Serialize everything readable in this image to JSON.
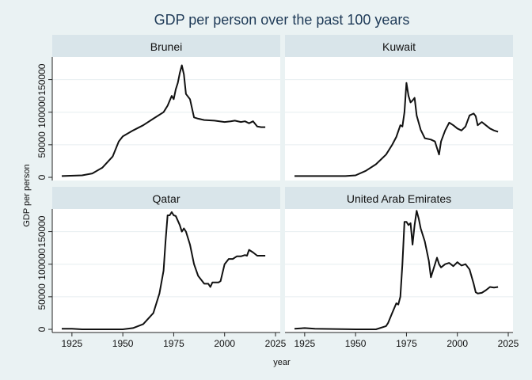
{
  "chart_data": {
    "type": "line",
    "title": "GDP per person over the past 100 years",
    "xlabel": "year",
    "ylabel": "GDP per person",
    "xlim": [
      1920,
      2025
    ],
    "ylim": [
      0,
      175000
    ],
    "x_ticks": [
      1925,
      1950,
      1975,
      2000,
      2025
    ],
    "y_ticks": [
      0,
      50000,
      100000,
      150000
    ],
    "y_tick_labels": [
      "0",
      "50000",
      "100000",
      "150000"
    ],
    "grid": true,
    "legend": "none",
    "panels": [
      {
        "name": "Brunei",
        "x": [
          1920,
          1930,
          1935,
          1940,
          1945,
          1948,
          1950,
          1955,
          1960,
          1965,
          1970,
          1972,
          1974,
          1975,
          1976,
          1977,
          1978,
          1979,
          1980,
          1981,
          1983,
          1985,
          1987,
          1990,
          1995,
          2000,
          2003,
          2005,
          2008,
          2010,
          2012,
          2014,
          2016,
          2018,
          2020
        ],
        "y": [
          2000,
          3000,
          6000,
          15000,
          32000,
          55000,
          63000,
          72000,
          80000,
          90000,
          100000,
          110000,
          125000,
          120000,
          135000,
          145000,
          160000,
          172000,
          158000,
          128000,
          120000,
          92000,
          90000,
          88000,
          87000,
          85000,
          86000,
          87000,
          85000,
          86000,
          83000,
          86000,
          78000,
          77000,
          77000
        ]
      },
      {
        "name": "Kuwait",
        "x": [
          1920,
          1930,
          1945,
          1950,
          1955,
          1960,
          1965,
          1968,
          1970,
          1972,
          1973,
          1974,
          1975,
          1976,
          1977,
          1978,
          1979,
          1980,
          1982,
          1984,
          1987,
          1989,
          1990,
          1991,
          1992,
          1994,
          1996,
          1998,
          2000,
          2002,
          2004,
          2006,
          2008,
          2009,
          2010,
          2012,
          2014,
          2016,
          2018,
          2020
        ],
        "y": [
          2000,
          2000,
          2000,
          3000,
          10000,
          20000,
          35000,
          50000,
          62000,
          80000,
          78000,
          100000,
          145000,
          125000,
          115000,
          118000,
          122000,
          95000,
          73000,
          60000,
          58000,
          55000,
          45000,
          35000,
          55000,
          72000,
          84000,
          80000,
          75000,
          72000,
          78000,
          95000,
          98000,
          94000,
          80000,
          85000,
          80000,
          75000,
          72000,
          70000
        ]
      },
      {
        "name": "Qatar",
        "x": [
          1920,
          1925,
          1930,
          1950,
          1955,
          1960,
          1965,
          1968,
          1970,
          1971,
          1972,
          1973,
          1974,
          1975,
          1976,
          1978,
          1979,
          1980,
          1981,
          1983,
          1985,
          1987,
          1990,
          1992,
          1993,
          1994,
          1997,
          1998,
          2000,
          2002,
          2004,
          2006,
          2008,
          2010,
          2011,
          2012,
          2014,
          2016,
          2018,
          2020
        ],
        "y": [
          1000,
          1000,
          0,
          0,
          2000,
          8000,
          25000,
          55000,
          90000,
          135000,
          175000,
          175000,
          180000,
          175000,
          174000,
          160000,
          150000,
          155000,
          150000,
          130000,
          100000,
          82000,
          70000,
          70000,
          65000,
          72000,
          72000,
          74000,
          100000,
          108000,
          108000,
          112000,
          112000,
          114000,
          113000,
          122000,
          118000,
          113000,
          113000,
          113000
        ]
      },
      {
        "name": "United Arab Emirates",
        "x": [
          1920,
          1925,
          1930,
          1950,
          1960,
          1965,
          1966,
          1968,
          1970,
          1971,
          1972,
          1973,
          1974,
          1975,
          1976,
          1977,
          1978,
          1979,
          1980,
          1981,
          1982,
          1984,
          1986,
          1987,
          1988,
          1990,
          1991,
          1992,
          1994,
          1996,
          1998,
          2000,
          2002,
          2004,
          2006,
          2008,
          2009,
          2010,
          2012,
          2014,
          2016,
          2018,
          2020
        ],
        "y": [
          1000,
          2000,
          1000,
          0,
          0,
          5000,
          10000,
          25000,
          40000,
          38000,
          50000,
          100000,
          165000,
          165000,
          160000,
          163000,
          130000,
          160000,
          182000,
          170000,
          155000,
          135000,
          105000,
          80000,
          90000,
          110000,
          100000,
          95000,
          100000,
          102000,
          97000,
          103000,
          98000,
          100000,
          92000,
          70000,
          57000,
          55000,
          56000,
          60000,
          65000,
          64000,
          65000
        ]
      }
    ]
  }
}
